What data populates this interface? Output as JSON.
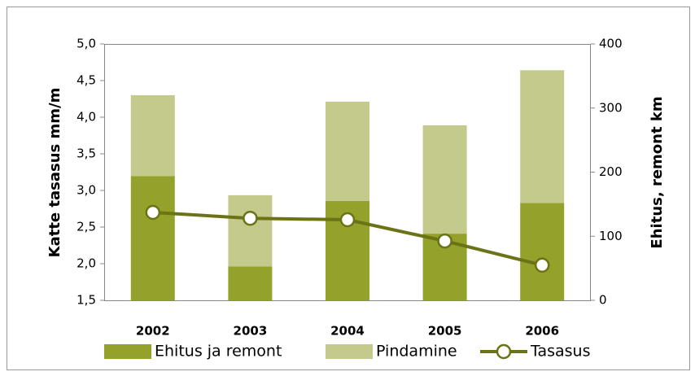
{
  "chart_data": {
    "type": "bar-line",
    "categories": [
      "2002",
      "2003",
      "2004",
      "2005",
      "2006"
    ],
    "ylabel": "Katte tasasus mm/m",
    "y2label": "Ehitus, remont km",
    "ylim": [
      1.5,
      5.0
    ],
    "yticks": [
      {
        "value": 1.5,
        "label": "1,5"
      },
      {
        "value": 2.0,
        "label": "2,0"
      },
      {
        "value": 2.5,
        "label": "2,5"
      },
      {
        "value": 3.0,
        "label": "3,0"
      },
      {
        "value": 3.5,
        "label": "3,5"
      },
      {
        "value": 4.0,
        "label": "4,0"
      },
      {
        "value": 4.5,
        "label": "4,5"
      },
      {
        "value": 5.0,
        "label": "5,0"
      }
    ],
    "y2lim": [
      0,
      400
    ],
    "y2ticks": [
      0,
      100,
      200,
      300,
      400
    ],
    "series": [
      {
        "name": "Ehitus ja remont",
        "type": "bar",
        "axis": "y2",
        "color": "#94a12a",
        "values": [
          194,
          53,
          155,
          104,
          152
        ]
      },
      {
        "name": "Pindamine",
        "type": "bar",
        "axis": "y2",
        "color": "#c4ca8c",
        "values": [
          126,
          111,
          155,
          169,
          207
        ]
      },
      {
        "name": "Tasasus",
        "type": "line",
        "axis": "y",
        "color": "#6b7316",
        "values": [
          2.7,
          2.62,
          2.6,
          2.31,
          1.98
        ]
      }
    ]
  }
}
